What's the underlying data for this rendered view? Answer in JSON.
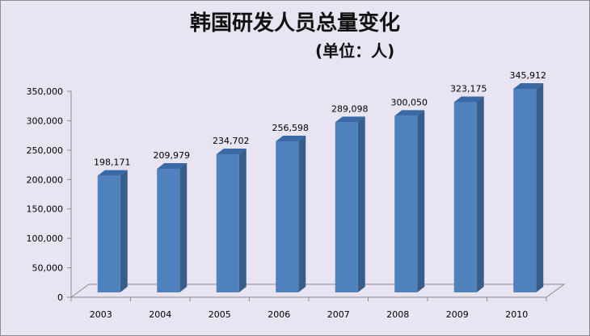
{
  "chart_data": {
    "type": "bar",
    "title": "韩国研发人员总量变化",
    "subtitle": "(单位：人)",
    "categories": [
      "2003",
      "2004",
      "2005",
      "2006",
      "2007",
      "2008",
      "2009",
      "2010"
    ],
    "values": [
      198171,
      209979,
      234702,
      256598,
      289098,
      300050,
      323175,
      345912
    ],
    "data_labels": [
      "198,171",
      "209,979",
      "234,702",
      "256,598",
      "289,098",
      "300,050",
      "323,175",
      "345,912"
    ],
    "yticks": [
      "0",
      "50,000",
      "100,000",
      "150,000",
      "200,000",
      "250,000",
      "300,000",
      "350,000"
    ],
    "ylim": [
      0,
      350000
    ],
    "grid": false,
    "legend": "none",
    "style": "3d-column",
    "colors": {
      "bar_front": "#4f81bd",
      "bar_side": "#385d8a",
      "bar_top": "#3a6aa6",
      "background": "#e8e4f2"
    }
  }
}
